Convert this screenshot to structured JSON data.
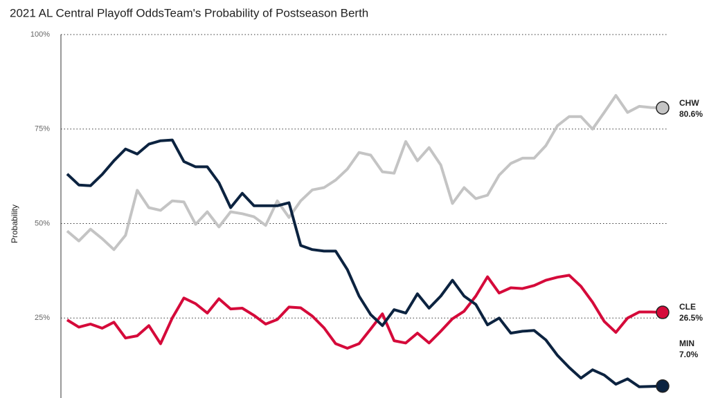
{
  "chart_data": {
    "type": "line",
    "title": "2021 AL Central Playoff OddsTeam's Probability of Postseason Berth",
    "y_label": "Probability",
    "ylim": [
      0,
      100
    ],
    "yticks": [
      {
        "value": 25,
        "label": "25%"
      },
      {
        "value": 50,
        "label": "50%"
      },
      {
        "value": 75,
        "label": "75%"
      },
      {
        "value": 100,
        "label": "100%"
      }
    ],
    "grid": true,
    "series": [
      {
        "name": "CHW",
        "color": "#c4c4c4",
        "end_label": "80.6%",
        "values": [
          48.0,
          45.4,
          48.5,
          46.0,
          43.1,
          46.9,
          58.8,
          54.2,
          53.5,
          56.0,
          55.7,
          49.8,
          53.1,
          49.1,
          53.1,
          52.6,
          51.8,
          49.5,
          56.0,
          51.6,
          56.0,
          58.9,
          59.5,
          61.5,
          64.4,
          68.8,
          68.1,
          63.7,
          63.3,
          71.7,
          66.6,
          70.1,
          65.5,
          55.3,
          59.5,
          56.6,
          57.5,
          62.8,
          65.9,
          67.3,
          67.3,
          70.6,
          75.9,
          78.3,
          78.3,
          75.0,
          79.4,
          83.9,
          79.4,
          81.0,
          80.7,
          80.6
        ]
      },
      {
        "name": "CLE",
        "color": "#d50a3a",
        "end_label": "26.5%",
        "values": [
          24.5,
          22.6,
          23.4,
          22.3,
          23.9,
          19.7,
          20.3,
          23.0,
          18.2,
          25.0,
          30.3,
          28.8,
          26.3,
          30.1,
          27.4,
          27.6,
          25.7,
          23.4,
          24.6,
          27.9,
          27.7,
          25.5,
          22.4,
          18.2,
          17.0,
          18.2,
          22.1,
          26.1,
          19.0,
          18.4,
          21.0,
          18.4,
          21.5,
          24.8,
          26.8,
          30.8,
          35.9,
          31.6,
          33.0,
          32.8,
          33.6,
          35.0,
          35.8,
          36.3,
          33.4,
          29.2,
          24.1,
          21.2,
          25.0,
          26.6,
          26.6,
          26.5
        ]
      },
      {
        "name": "MIN",
        "color": "#0c2340",
        "end_label": "7.0%",
        "values": [
          63.1,
          60.2,
          60.0,
          63.0,
          66.6,
          69.7,
          68.4,
          71.0,
          71.9,
          72.1,
          66.4,
          65.0,
          65.0,
          60.8,
          54.2,
          58.0,
          54.7,
          54.7,
          54.7,
          55.5,
          44.2,
          43.1,
          42.7,
          42.7,
          37.8,
          30.8,
          25.9,
          23.0,
          27.2,
          26.3,
          31.4,
          27.6,
          30.8,
          35.0,
          30.8,
          28.6,
          23.2,
          25.0,
          21.0,
          21.5,
          21.7,
          19.2,
          15.1,
          11.9,
          9.1,
          11.3,
          9.9,
          7.5,
          8.9,
          6.8,
          6.9,
          7.0
        ]
      }
    ]
  }
}
